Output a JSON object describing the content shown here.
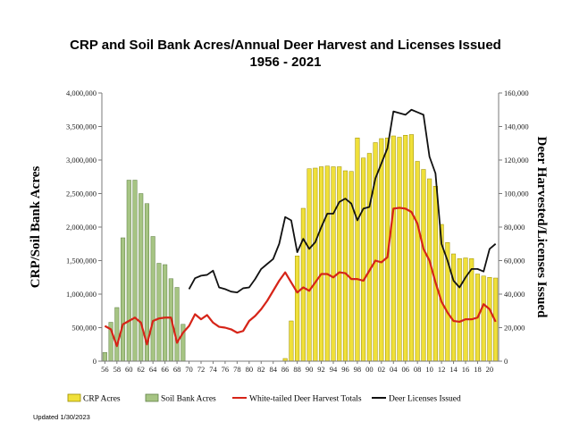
{
  "chart_data": {
    "type": "bar",
    "title": "CRP and Soil Bank Acres/Annual Deer Harvest and Licenses Issued",
    "subtitle": "1956 - 2021",
    "ylabel_left": "CRP/Soil Bank Acres",
    "ylabel_right": "Deer Harvested/Licenses Issued",
    "ylim_left": [
      0,
      4000000
    ],
    "ylim_right": [
      0,
      160000
    ],
    "yticks_left": [
      "0",
      "500,000",
      "1,000,000",
      "1,500,000",
      "2,000,000",
      "2,500,000",
      "3,000,000",
      "3,500,000",
      "4,000,000"
    ],
    "yticks_right": [
      "0",
      "20,000",
      "40,000",
      "60,000",
      "80,000",
      "100,000",
      "120,000",
      "140,000",
      "160,000"
    ],
    "years": [
      1956,
      1957,
      1958,
      1959,
      1960,
      1961,
      1962,
      1963,
      1964,
      1965,
      1966,
      1967,
      1968,
      1969,
      1970,
      1971,
      1972,
      1973,
      1974,
      1975,
      1976,
      1977,
      1978,
      1979,
      1980,
      1981,
      1982,
      1983,
      1984,
      1985,
      1986,
      1987,
      1988,
      1989,
      1990,
      1991,
      1992,
      1993,
      1994,
      1995,
      1996,
      1997,
      1998,
      1999,
      2000,
      2001,
      2002,
      2003,
      2004,
      2005,
      2006,
      2007,
      2008,
      2009,
      2010,
      2011,
      2012,
      2013,
      2014,
      2015,
      2016,
      2017,
      2018,
      2019,
      2020,
      2021
    ],
    "xtick_labels": [
      "56",
      "58",
      "60",
      "62",
      "64",
      "66",
      "68",
      "70",
      "72",
      "74",
      "76",
      "78",
      "80",
      "82",
      "84",
      "86",
      "88",
      "90",
      "92",
      "94",
      "96",
      "98",
      "00",
      "02",
      "04",
      "06",
      "08",
      "10",
      "12",
      "14",
      "16",
      "18",
      "20"
    ],
    "series": [
      {
        "name": "CRP Acres",
        "type": "bar",
        "axis": "left",
        "color": "#f0e03a",
        "values": [
          0,
          0,
          0,
          0,
          0,
          0,
          0,
          0,
          0,
          0,
          0,
          0,
          0,
          0,
          0,
          0,
          0,
          0,
          0,
          0,
          0,
          0,
          0,
          0,
          0,
          0,
          0,
          0,
          0,
          0,
          40000,
          600000,
          1570000,
          2280000,
          2870000,
          2880000,
          2900000,
          2910000,
          2900000,
          2900000,
          2840000,
          2830000,
          3330000,
          3030000,
          3100000,
          3260000,
          3320000,
          3330000,
          3360000,
          3340000,
          3370000,
          3380000,
          2980000,
          2860000,
          2720000,
          2610000,
          2040000,
          1770000,
          1600000,
          1530000,
          1540000,
          1530000,
          1300000,
          1270000,
          1250000,
          1240000
        ]
      },
      {
        "name": "Soil Bank Acres",
        "type": "bar",
        "axis": "left",
        "color": "#a6c483",
        "values": [
          130000,
          580000,
          800000,
          1840000,
          2700000,
          2700000,
          2500000,
          2350000,
          1860000,
          1460000,
          1440000,
          1230000,
          1100000,
          550000,
          0,
          0,
          0,
          0,
          0,
          0,
          0,
          0,
          0,
          0,
          0,
          0,
          0,
          0,
          0,
          0,
          0,
          0,
          0,
          0,
          0,
          0,
          0,
          0,
          0,
          0,
          0,
          0,
          0,
          0,
          0,
          0,
          0,
          0,
          0,
          0,
          0,
          0,
          0,
          0,
          0,
          0,
          0,
          0,
          0,
          0,
          0,
          0,
          0,
          0,
          0,
          0
        ]
      },
      {
        "name": "White-tailed Deer Harvest Totals",
        "type": "line",
        "axis": "right",
        "color": "#d62418",
        "values": [
          21000,
          19000,
          9000,
          22000,
          24000,
          26000,
          23000,
          10000,
          24000,
          25500,
          26000,
          26000,
          11000,
          17000,
          21000,
          28000,
          25000,
          27500,
          23000,
          20500,
          20000,
          19000,
          17000,
          18000,
          24000,
          27000,
          31000,
          36000,
          42000,
          48000,
          53000,
          47000,
          41000,
          44000,
          42000,
          47000,
          52000,
          52000,
          50000,
          53000,
          52500,
          49000,
          49000,
          48000,
          54000,
          60000,
          59000,
          62000,
          91000,
          91500,
          91000,
          89000,
          82000,
          67000,
          60000,
          47000,
          35500,
          29000,
          24000,
          23500,
          25000,
          25000,
          26000,
          34000,
          31000,
          23500
        ]
      },
      {
        "name": "Deer Licenses Issued",
        "type": "line",
        "axis": "right",
        "color": "#111111",
        "values": [
          null,
          null,
          null,
          null,
          null,
          null,
          null,
          null,
          null,
          null,
          null,
          null,
          null,
          null,
          43000,
          49500,
          51000,
          51500,
          54000,
          44000,
          43000,
          41500,
          41000,
          43500,
          44000,
          49000,
          55000,
          58000,
          61000,
          70000,
          86000,
          84000,
          65000,
          73000,
          67000,
          71000,
          80000,
          88000,
          88000,
          95000,
          97000,
          94000,
          84000,
          91000,
          92000,
          109000,
          118000,
          127000,
          149000,
          148000,
          147000,
          150000,
          148500,
          147000,
          122000,
          112000,
          70000,
          60000,
          48000,
          44000,
          50000,
          55000,
          55000,
          53500,
          67000,
          70000
        ]
      }
    ],
    "legend_position": "bottom",
    "grid": false
  },
  "footer": {
    "updated": "Updated 1/30/2023"
  }
}
